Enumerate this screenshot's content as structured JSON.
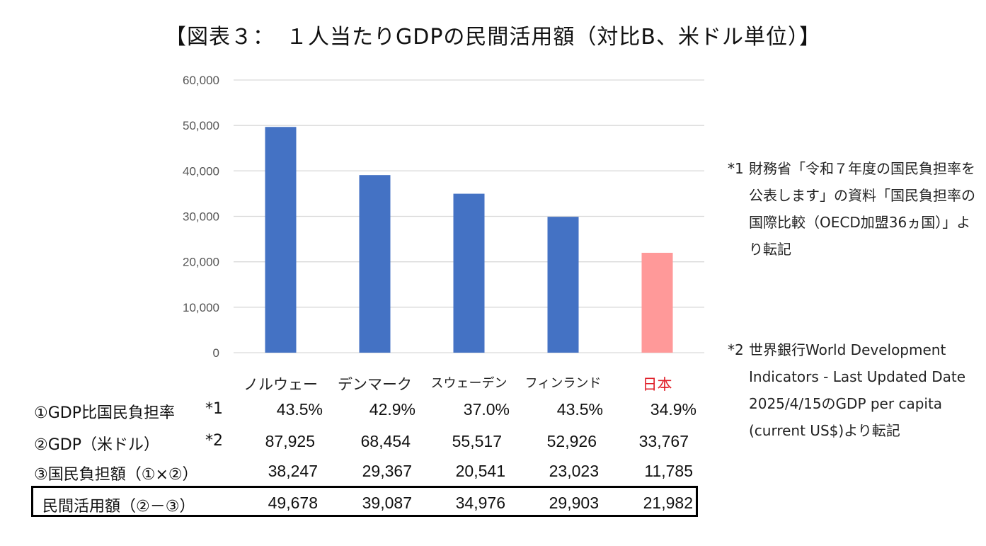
{
  "title": "【図表３：　１人当たりGDPの民間活用額（対比B、米ドル単位）】",
  "colors": {
    "bar": "#4472C4",
    "japan_bar": "#FF9999",
    "japan_label": "#E0202A",
    "grid": "#D9D9D9"
  },
  "chart_data": {
    "type": "bar",
    "categories": [
      "ノルウェー",
      "デンマーク",
      "スウェーデン",
      "フィンランド",
      "日本"
    ],
    "values": [
      49678,
      39087,
      34976,
      29903,
      21982
    ],
    "ylim": [
      0,
      60000
    ],
    "yticks": [
      "0",
      "10,000",
      "20,000",
      "30,000",
      "40,000",
      "50,000",
      "60,000"
    ],
    "ytick_values": [
      0,
      10000,
      20000,
      30000,
      40000,
      50000,
      60000
    ],
    "grid": true,
    "title": "",
    "xlabel": "",
    "ylabel": ""
  },
  "table": {
    "rows": [
      {
        "label": "①GDP比国民負担率",
        "note": "*1",
        "values": [
          "43.5%",
          "42.9%",
          "37.0%",
          "43.5%",
          "34.9%"
        ]
      },
      {
        "label": "②GDP（米ドル）",
        "note": "*2",
        "values": [
          "87,925",
          "68,454",
          "55,517",
          "52,926",
          "33,767"
        ]
      },
      {
        "label": "③国民負担額（①×②）",
        "note": "",
        "values": [
          "38,247",
          "29,367",
          "20,541",
          "23,023",
          "11,785"
        ]
      },
      {
        "label": "民間活用額（②－③）",
        "note": "",
        "values": [
          "49,678",
          "39,087",
          "34,976",
          "29,903",
          "21,982"
        ]
      }
    ]
  },
  "notes": [
    {
      "mark": "*1",
      "text": "財務省「令和７年度の国民負担率を公表します」の資料「国民負担率の国際比較（OECD加盟36ヵ国）」より転記"
    },
    {
      "mark": "*2",
      "text": "世界銀行World Development Indicators - Last Updated Date 2025/4/15のGDP per capita (current US$)より転記"
    }
  ]
}
